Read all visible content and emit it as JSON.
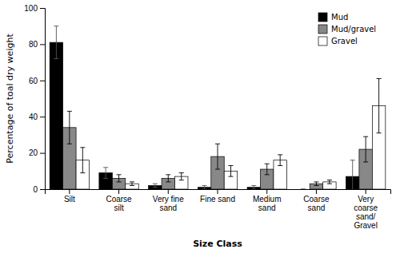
{
  "chart_data": {
    "type": "bar",
    "categories": [
      "Silt",
      "Coarse\nsilt",
      "Very fine\nsand",
      "Fine sand",
      "Medium\nsand",
      "Coarse\nsand",
      "Very\ncoarse\nsand/\nGravel"
    ],
    "series": [
      {
        "name": "Mud",
        "color": "#000000",
        "values": [
          81,
          9,
          2,
          1,
          1,
          0,
          7
        ],
        "errors": [
          9,
          3,
          1,
          1,
          1,
          0,
          9
        ]
      },
      {
        "name": "Mud/gravel",
        "color": "#888888",
        "values": [
          34,
          6,
          6,
          18,
          11,
          3,
          22
        ],
        "errors": [
          9,
          2,
          2,
          7,
          3,
          1,
          7
        ]
      },
      {
        "name": "Gravel",
        "color": "#ffffff",
        "values": [
          16,
          3,
          7,
          10,
          16,
          4,
          46
        ],
        "errors": [
          7,
          1,
          2,
          3,
          3,
          1,
          15
        ]
      }
    ],
    "ylabel": "Percentage of toal dry weight",
    "xlabel": "Size Class",
    "ylim": [
      0,
      100
    ],
    "yticks": [
      0,
      20,
      40,
      60,
      80,
      100
    ],
    "legend": "upper right",
    "grid": false
  }
}
